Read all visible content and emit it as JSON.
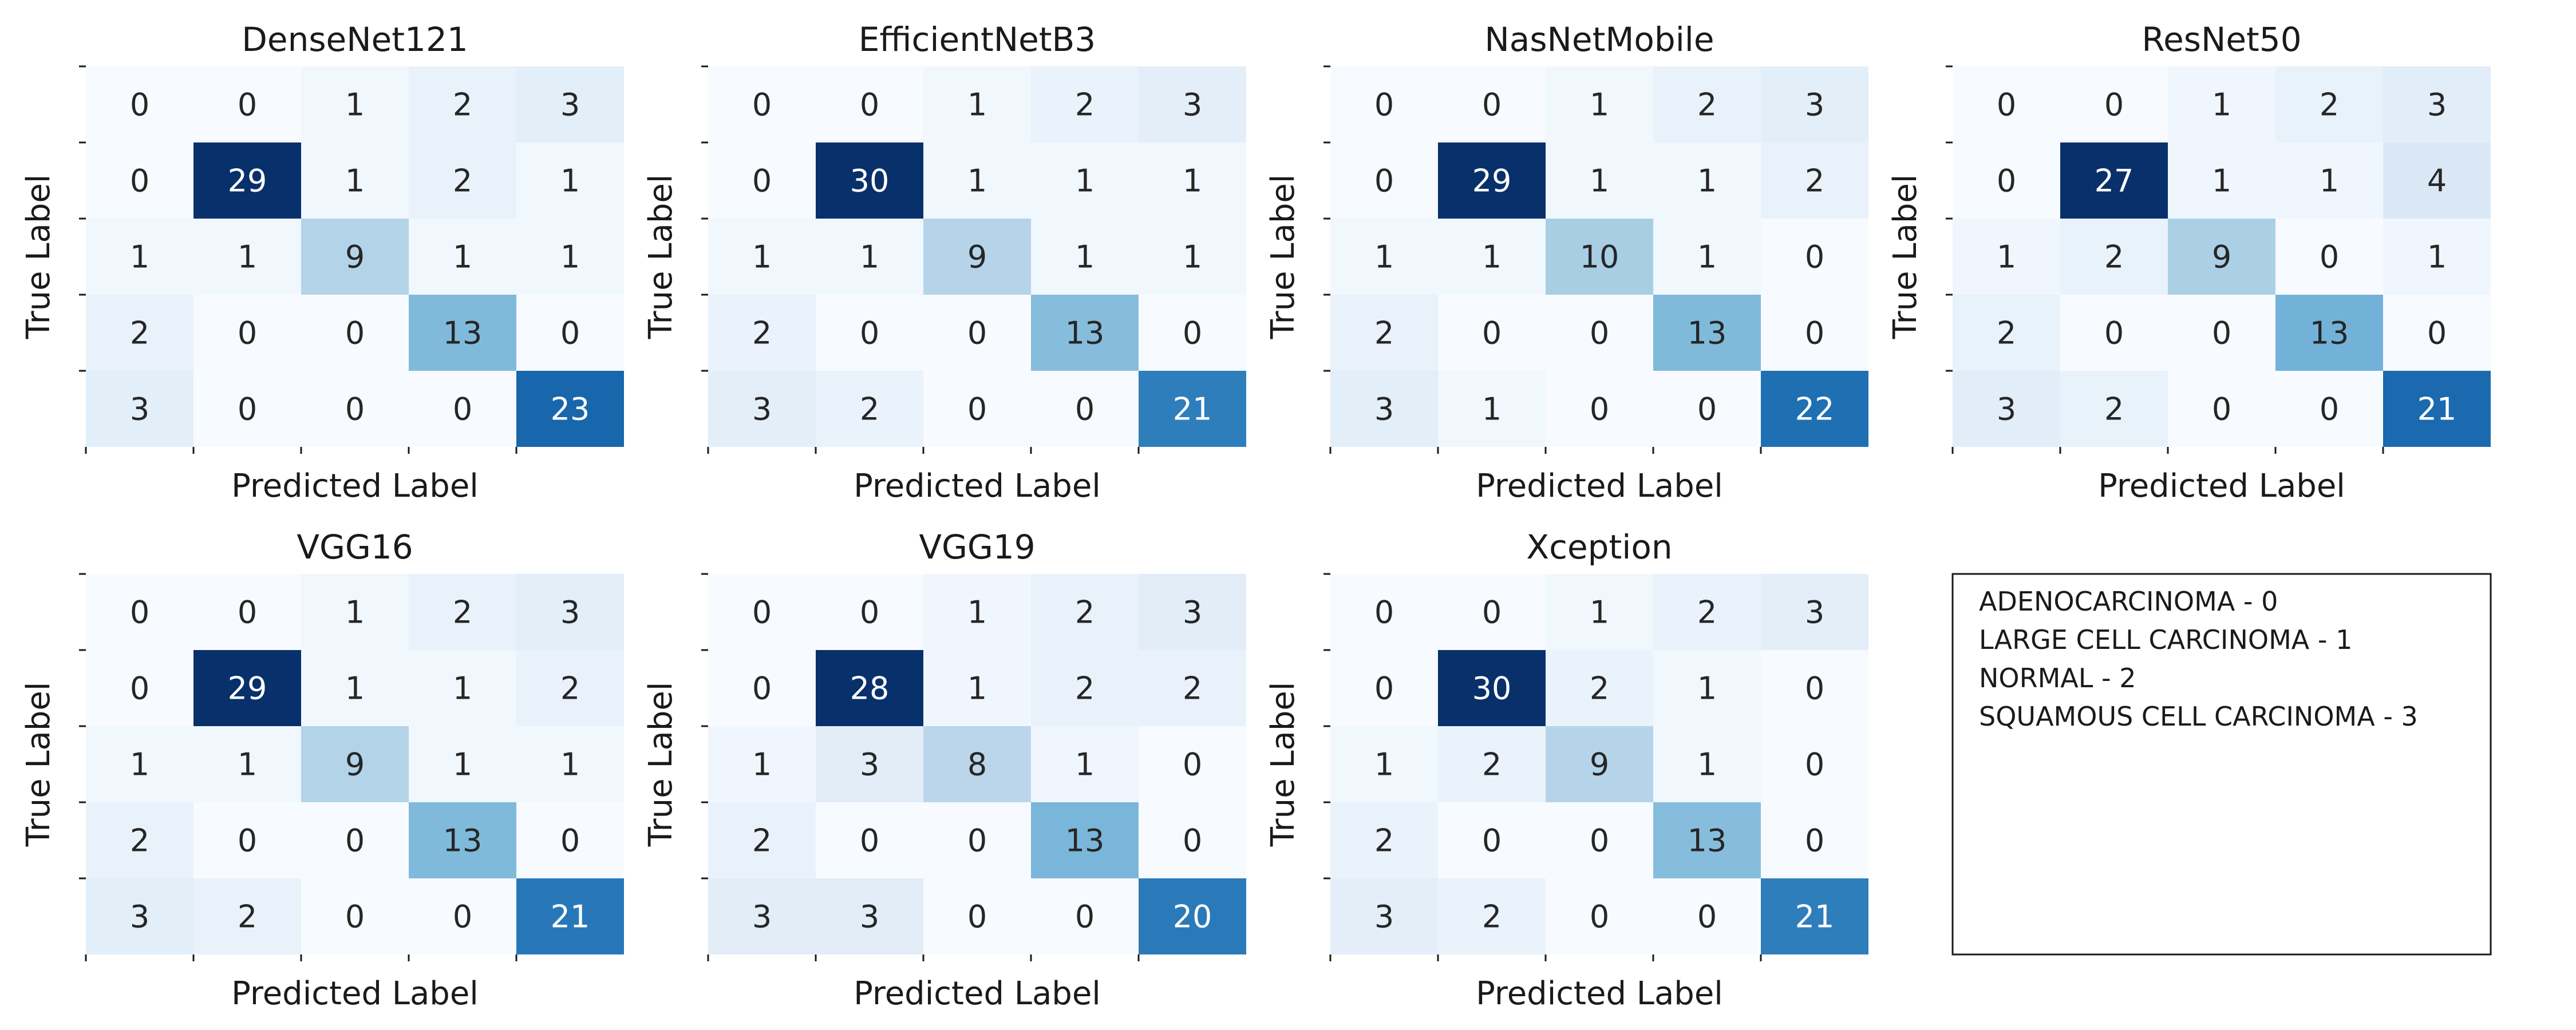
{
  "chart_data": [
    {
      "type": "heatmap",
      "title": "DenseNet121",
      "xlabel": "Predicted Label",
      "ylabel": "True Label",
      "matrix": [
        [
          0,
          0,
          1,
          2,
          3
        ],
        [
          0,
          29,
          1,
          2,
          1
        ],
        [
          1,
          1,
          9,
          1,
          1
        ],
        [
          2,
          0,
          0,
          13,
          0
        ],
        [
          3,
          0,
          0,
          0,
          23
        ]
      ]
    },
    {
      "type": "heatmap",
      "title": "EfficientNetB3",
      "xlabel": "Predicted Label",
      "ylabel": "True Label",
      "matrix": [
        [
          0,
          0,
          1,
          2,
          3
        ],
        [
          0,
          30,
          1,
          1,
          1
        ],
        [
          1,
          1,
          9,
          1,
          1
        ],
        [
          2,
          0,
          0,
          13,
          0
        ],
        [
          3,
          2,
          0,
          0,
          21
        ]
      ]
    },
    {
      "type": "heatmap",
      "title": "NasNetMobile",
      "xlabel": "Predicted Label",
      "ylabel": "True Label",
      "matrix": [
        [
          0,
          0,
          1,
          2,
          3
        ],
        [
          0,
          29,
          1,
          1,
          2
        ],
        [
          1,
          1,
          10,
          1,
          0
        ],
        [
          2,
          0,
          0,
          13,
          0
        ],
        [
          3,
          1,
          0,
          0,
          22
        ]
      ]
    },
    {
      "type": "heatmap",
      "title": "ResNet50",
      "xlabel": "Predicted Label",
      "ylabel": "True Label",
      "matrix": [
        [
          0,
          0,
          1,
          2,
          3
        ],
        [
          0,
          27,
          1,
          1,
          4
        ],
        [
          1,
          2,
          9,
          0,
          1
        ],
        [
          2,
          0,
          0,
          13,
          0
        ],
        [
          3,
          2,
          0,
          0,
          21
        ]
      ]
    },
    {
      "type": "heatmap",
      "title": "VGG16",
      "xlabel": "Predicted Label",
      "ylabel": "True Label",
      "matrix": [
        [
          0,
          0,
          1,
          2,
          3
        ],
        [
          0,
          29,
          1,
          1,
          2
        ],
        [
          1,
          1,
          9,
          1,
          1
        ],
        [
          2,
          0,
          0,
          13,
          0
        ],
        [
          3,
          2,
          0,
          0,
          21
        ]
      ]
    },
    {
      "type": "heatmap",
      "title": "VGG19",
      "xlabel": "Predicted Label",
      "ylabel": "True Label",
      "matrix": [
        [
          0,
          0,
          1,
          2,
          3
        ],
        [
          0,
          28,
          1,
          2,
          2
        ],
        [
          1,
          3,
          8,
          1,
          0
        ],
        [
          2,
          0,
          0,
          13,
          0
        ],
        [
          3,
          3,
          0,
          0,
          20
        ]
      ]
    },
    {
      "type": "heatmap",
      "title": "Xception",
      "xlabel": "Predicted Label",
      "ylabel": "True Label",
      "matrix": [
        [
          0,
          0,
          1,
          2,
          3
        ],
        [
          0,
          30,
          2,
          1,
          0
        ],
        [
          1,
          2,
          9,
          1,
          0
        ],
        [
          2,
          0,
          0,
          13,
          0
        ],
        [
          3,
          2,
          0,
          0,
          21
        ]
      ]
    }
  ],
  "legend_box": {
    "lines": [
      "ADENOCARCINOMA - 0",
      "LARGE CELL CARCINOMA - 1",
      "NORMAL - 2",
      "SQUAMOUS CELL CARCINOMA - 3"
    ]
  },
  "colormap": "Blues",
  "colorbar": false
}
